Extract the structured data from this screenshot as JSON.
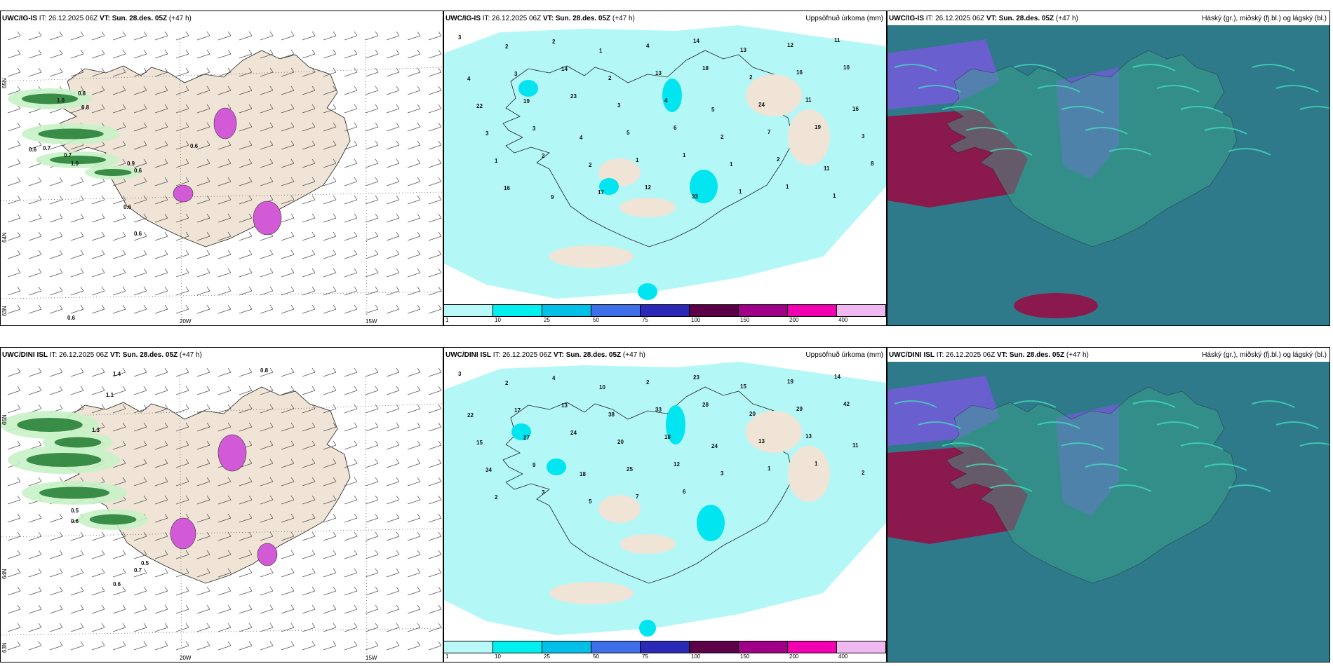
{
  "colors": {
    "land": "#efe4d6",
    "precip_light": "#b3f7f7",
    "precip_mid": "#00e5ef",
    "precip_green_light": "#c8f2c8",
    "precip_green_dark": "#1e7a2e",
    "magenta": "#d25ad6",
    "cloud_teal": "#2f7a8a",
    "cloud_crimson": "#8a1a4e",
    "cloud_purple": "#6a5fcf",
    "cloud_green": "#3aa88a"
  },
  "rows": [
    {
      "model": "UWC/IG-IS",
      "it_label": "IT:",
      "it_value": "26.12.2025 06Z",
      "vt_label": "VT:",
      "vt_value": "Sun. 28.des. 05Z",
      "lead": "(+47 h)",
      "precip_title": "Uppsöfnuð úrkoma (mm)",
      "cloud_title": "Háský (gr.), miðský (fj.bl.) og lágský (bl.)",
      "lon_labels": [
        "20W",
        "15W"
      ],
      "lat_labels": [
        "65N",
        "64N",
        "63N"
      ],
      "wind_values": [
        "1.0",
        "0.8",
        "0.8",
        "0.6",
        "0.7",
        "0.7",
        "1.0",
        "0.9",
        "0.6",
        "0.6",
        "0.6",
        "0.6",
        "0.6"
      ],
      "precip_values": [
        "3",
        "2",
        "2",
        "1",
        "4",
        "14",
        "13",
        "12",
        "11",
        "4",
        "3",
        "14",
        "2",
        "13",
        "18",
        "2",
        "16",
        "10",
        "22",
        "19",
        "23",
        "3",
        "4",
        "5",
        "24",
        "11",
        "16",
        "3",
        "3",
        "4",
        "5",
        "6",
        "2",
        "7",
        "19",
        "3",
        "1",
        "2",
        "2",
        "1",
        "1",
        "1",
        "2",
        "11",
        "8",
        "16",
        "9",
        "17",
        "12",
        "33",
        "1",
        "1",
        "1"
      ]
    },
    {
      "model": "UWC/DINI ISL",
      "it_label": "IT:",
      "it_value": "26.12.2025 06Z",
      "vt_label": "VT:",
      "vt_value": "Sun. 28.des. 05Z",
      "lead": "(+47 h)",
      "precip_title": "Uppsöfnuð úrkoma (mm)",
      "cloud_title": "Háský (gr.), miðský (fj.bl.) og lágský (bl.)",
      "lon_labels": [
        "20W",
        "15W"
      ],
      "lat_labels": [
        "65N",
        "64N",
        "63N"
      ],
      "wind_values": [
        "0.8",
        "1.1",
        "0.5",
        "0.6",
        "0.7",
        "0.5",
        "0.6",
        "1.4",
        "1.3"
      ],
      "precip_values": [
        "3",
        "2",
        "4",
        "10",
        "2",
        "23",
        "15",
        "19",
        "14",
        "22",
        "17",
        "13",
        "38",
        "33",
        "28",
        "20",
        "29",
        "42",
        "15",
        "27",
        "24",
        "20",
        "18",
        "24",
        "13",
        "13",
        "11",
        "34",
        "9",
        "18",
        "25",
        "12",
        "3",
        "1",
        "1",
        "2",
        "2",
        "3",
        "5",
        "7",
        "6"
      ]
    }
  ],
  "legend": {
    "ticks": [
      "1",
      "10",
      "25",
      "50",
      "75",
      "100",
      "150",
      "200",
      "400"
    ],
    "colors": [
      "#b8f8f8",
      "#00f0f0",
      "#00c0e8",
      "#3f6fe8",
      "#2b2ab8",
      "#5c0048",
      "#a00088",
      "#f000b0",
      "#f0b8f0"
    ]
  }
}
